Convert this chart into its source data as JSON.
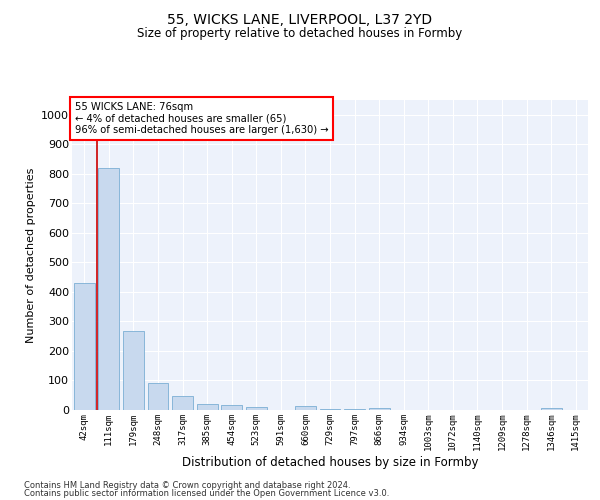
{
  "title_line1": "55, WICKS LANE, LIVERPOOL, L37 2YD",
  "title_line2": "Size of property relative to detached houses in Formby",
  "xlabel": "Distribution of detached houses by size in Formby",
  "ylabel": "Number of detached properties",
  "bar_color": "#c8d9ee",
  "bar_edge_color": "#7bafd4",
  "annotation_line1": "55 WICKS LANE: 76sqm",
  "annotation_line2": "← 4% of detached houses are smaller (65)",
  "annotation_line3": "96% of semi-detached houses are larger (1,630) →",
  "vline_color": "#cc0000",
  "categories": [
    "42sqm",
    "111sqm",
    "179sqm",
    "248sqm",
    "317sqm",
    "385sqm",
    "454sqm",
    "523sqm",
    "591sqm",
    "660sqm",
    "729sqm",
    "797sqm",
    "866sqm",
    "934sqm",
    "1003sqm",
    "1072sqm",
    "1140sqm",
    "1209sqm",
    "1278sqm",
    "1346sqm",
    "1415sqm"
  ],
  "values": [
    430,
    820,
    268,
    90,
    46,
    22,
    17,
    11,
    0,
    13,
    5,
    3,
    8,
    0,
    0,
    0,
    0,
    0,
    0,
    8,
    0
  ],
  "ylim": [
    0,
    1050
  ],
  "yticks": [
    0,
    100,
    200,
    300,
    400,
    500,
    600,
    700,
    800,
    900,
    1000
  ],
  "background_color": "#edf2fb",
  "footer_line1": "Contains HM Land Registry data © Crown copyright and database right 2024.",
  "footer_line2": "Contains public sector information licensed under the Open Government Licence v3.0."
}
